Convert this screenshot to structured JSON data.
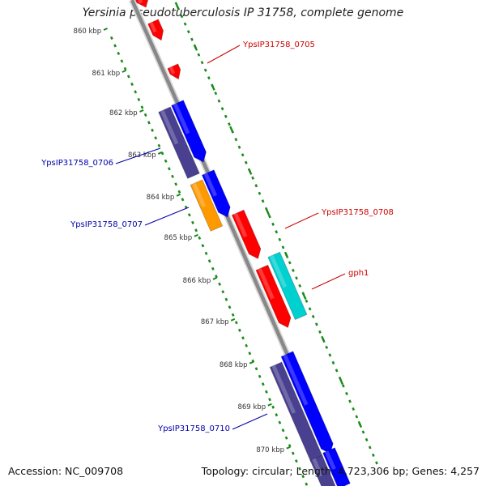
{
  "title": "Yersinia pseudotuberculosis IP 31758, complete genome",
  "footer": {
    "accession": "Accession: NC_009708",
    "summary": "Topology: circular; Length: 4,723,306 bp; Genes: 4,257"
  },
  "colors": {
    "backbone": "#888888",
    "ticks": "#1a8a1a",
    "red": "#ff0000",
    "blue": "#0000ff",
    "navy": "#4a4090",
    "orange": "#ff9900",
    "cyan": "#00d0d0",
    "label_red": "#cc0000",
    "label_blue": "#0000aa"
  },
  "ticks": [
    {
      "label": "860 kbp"
    },
    {
      "label": "861 kbp"
    },
    {
      "label": "862 kbp"
    },
    {
      "label": "863 kbp"
    },
    {
      "label": "864 kbp"
    },
    {
      "label": "865 kbp"
    },
    {
      "label": "866 kbp"
    },
    {
      "label": "867 kbp"
    },
    {
      "label": "868 kbp"
    },
    {
      "label": "869 kbp"
    },
    {
      "label": "870 kbp"
    }
  ],
  "gene_labels": [
    {
      "text": "YpsIP31758_0705",
      "color": "label_red"
    },
    {
      "text": "YpsIP31758_0706",
      "color": "label_blue"
    },
    {
      "text": "YpsIP31758_0707",
      "color": "label_blue"
    },
    {
      "text": "YpsIP31758_0708",
      "color": "label_red"
    },
    {
      "text": "gph1",
      "color": "label_red"
    },
    {
      "text": "YpsIP31758_0710",
      "color": "label_blue"
    }
  ]
}
